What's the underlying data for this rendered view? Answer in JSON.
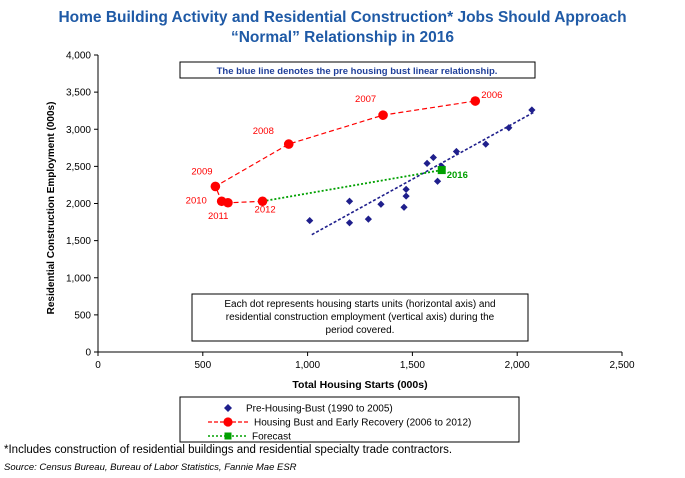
{
  "header": {
    "title_line1": "Home Building Activity and Residential Construction* Jobs Should Approach",
    "title_line2": "“Normal” Relationship in 2016"
  },
  "chart_data": {
    "type": "scatter",
    "xlabel": "Total Housing Starts (000s)",
    "ylabel": "Residential Construction Employment (000s)",
    "xlim": [
      0,
      2500
    ],
    "ylim": [
      0,
      4000
    ],
    "x_ticks": [
      0,
      500,
      1000,
      1500,
      2000,
      2500
    ],
    "x_tick_labels": [
      "0",
      "500",
      "1,000",
      "1,500",
      "2,000",
      "2,500"
    ],
    "y_ticks": [
      0,
      500,
      1000,
      1500,
      2000,
      2500,
      3000,
      3500,
      4000
    ],
    "y_tick_labels": [
      "0",
      "500",
      "1,000",
      "1,500",
      "2,000",
      "2,500",
      "3,000",
      "3,500",
      "4,000"
    ],
    "series": [
      {
        "name": "Pre-Housing-Bust (1990 to 2005)",
        "color": "#1f1f8c",
        "marker": "diamond",
        "points": [
          [
            1010,
            1770
          ],
          [
            1200,
            2030
          ],
          [
            1200,
            1740
          ],
          [
            1290,
            1790
          ],
          [
            1350,
            1990
          ],
          [
            1460,
            1950
          ],
          [
            1470,
            2100
          ],
          [
            1470,
            2190
          ],
          [
            1570,
            2540
          ],
          [
            1600,
            2620
          ],
          [
            1620,
            2300
          ],
          [
            1640,
            2500
          ],
          [
            1710,
            2700
          ],
          [
            1850,
            2800
          ],
          [
            1960,
            3020
          ],
          [
            2070,
            3260
          ]
        ],
        "trendline": [
          [
            1020,
            1580
          ],
          [
            2080,
            3230
          ]
        ]
      },
      {
        "name": "Housing Bust and Early Recovery (2006 to 2012)",
        "color": "#ff0000",
        "marker": "circle",
        "points": [
          [
            1800,
            3380
          ],
          [
            1360,
            3190
          ],
          [
            910,
            2800
          ],
          [
            560,
            2230
          ],
          [
            590,
            2030
          ],
          [
            620,
            2010
          ],
          [
            785,
            2030
          ]
        ],
        "point_labels": [
          {
            "year": "2006",
            "x": 1800,
            "y": 3380
          },
          {
            "year": "2007",
            "x": 1360,
            "y": 3190
          },
          {
            "year": "2008",
            "x": 910,
            "y": 2800
          },
          {
            "year": "2009",
            "x": 560,
            "y": 2230
          },
          {
            "year": "2010",
            "x": 590,
            "y": 2030
          },
          {
            "year": "2011",
            "x": 620,
            "y": 2010
          },
          {
            "year": "2012",
            "x": 785,
            "y": 2030
          }
        ]
      },
      {
        "name": "Forecast",
        "color": "#00a000",
        "marker": "square",
        "line": [
          [
            785,
            2030
          ],
          [
            1640,
            2450
          ]
        ],
        "points": [
          [
            1640,
            2450
          ]
        ],
        "point_labels": [
          {
            "year": "2016",
            "x": 1640,
            "y": 2450
          }
        ]
      }
    ],
    "annotations": {
      "top_box": "The blue line denotes the pre housing bust linear relationship.",
      "bottom_box_lines": [
        "Each dot represents housing starts units (horizontal axis) and",
        "residential construction employment (vertical axis) during the",
        "period covered."
      ]
    },
    "legend_position": "bottom"
  },
  "footer": {
    "footnote": "*Includes construction of residential buildings and residential specialty trade contractors.",
    "source": "Source: Census Bureau, Bureau of Labor Statistics, Fannie Mae ESR"
  }
}
